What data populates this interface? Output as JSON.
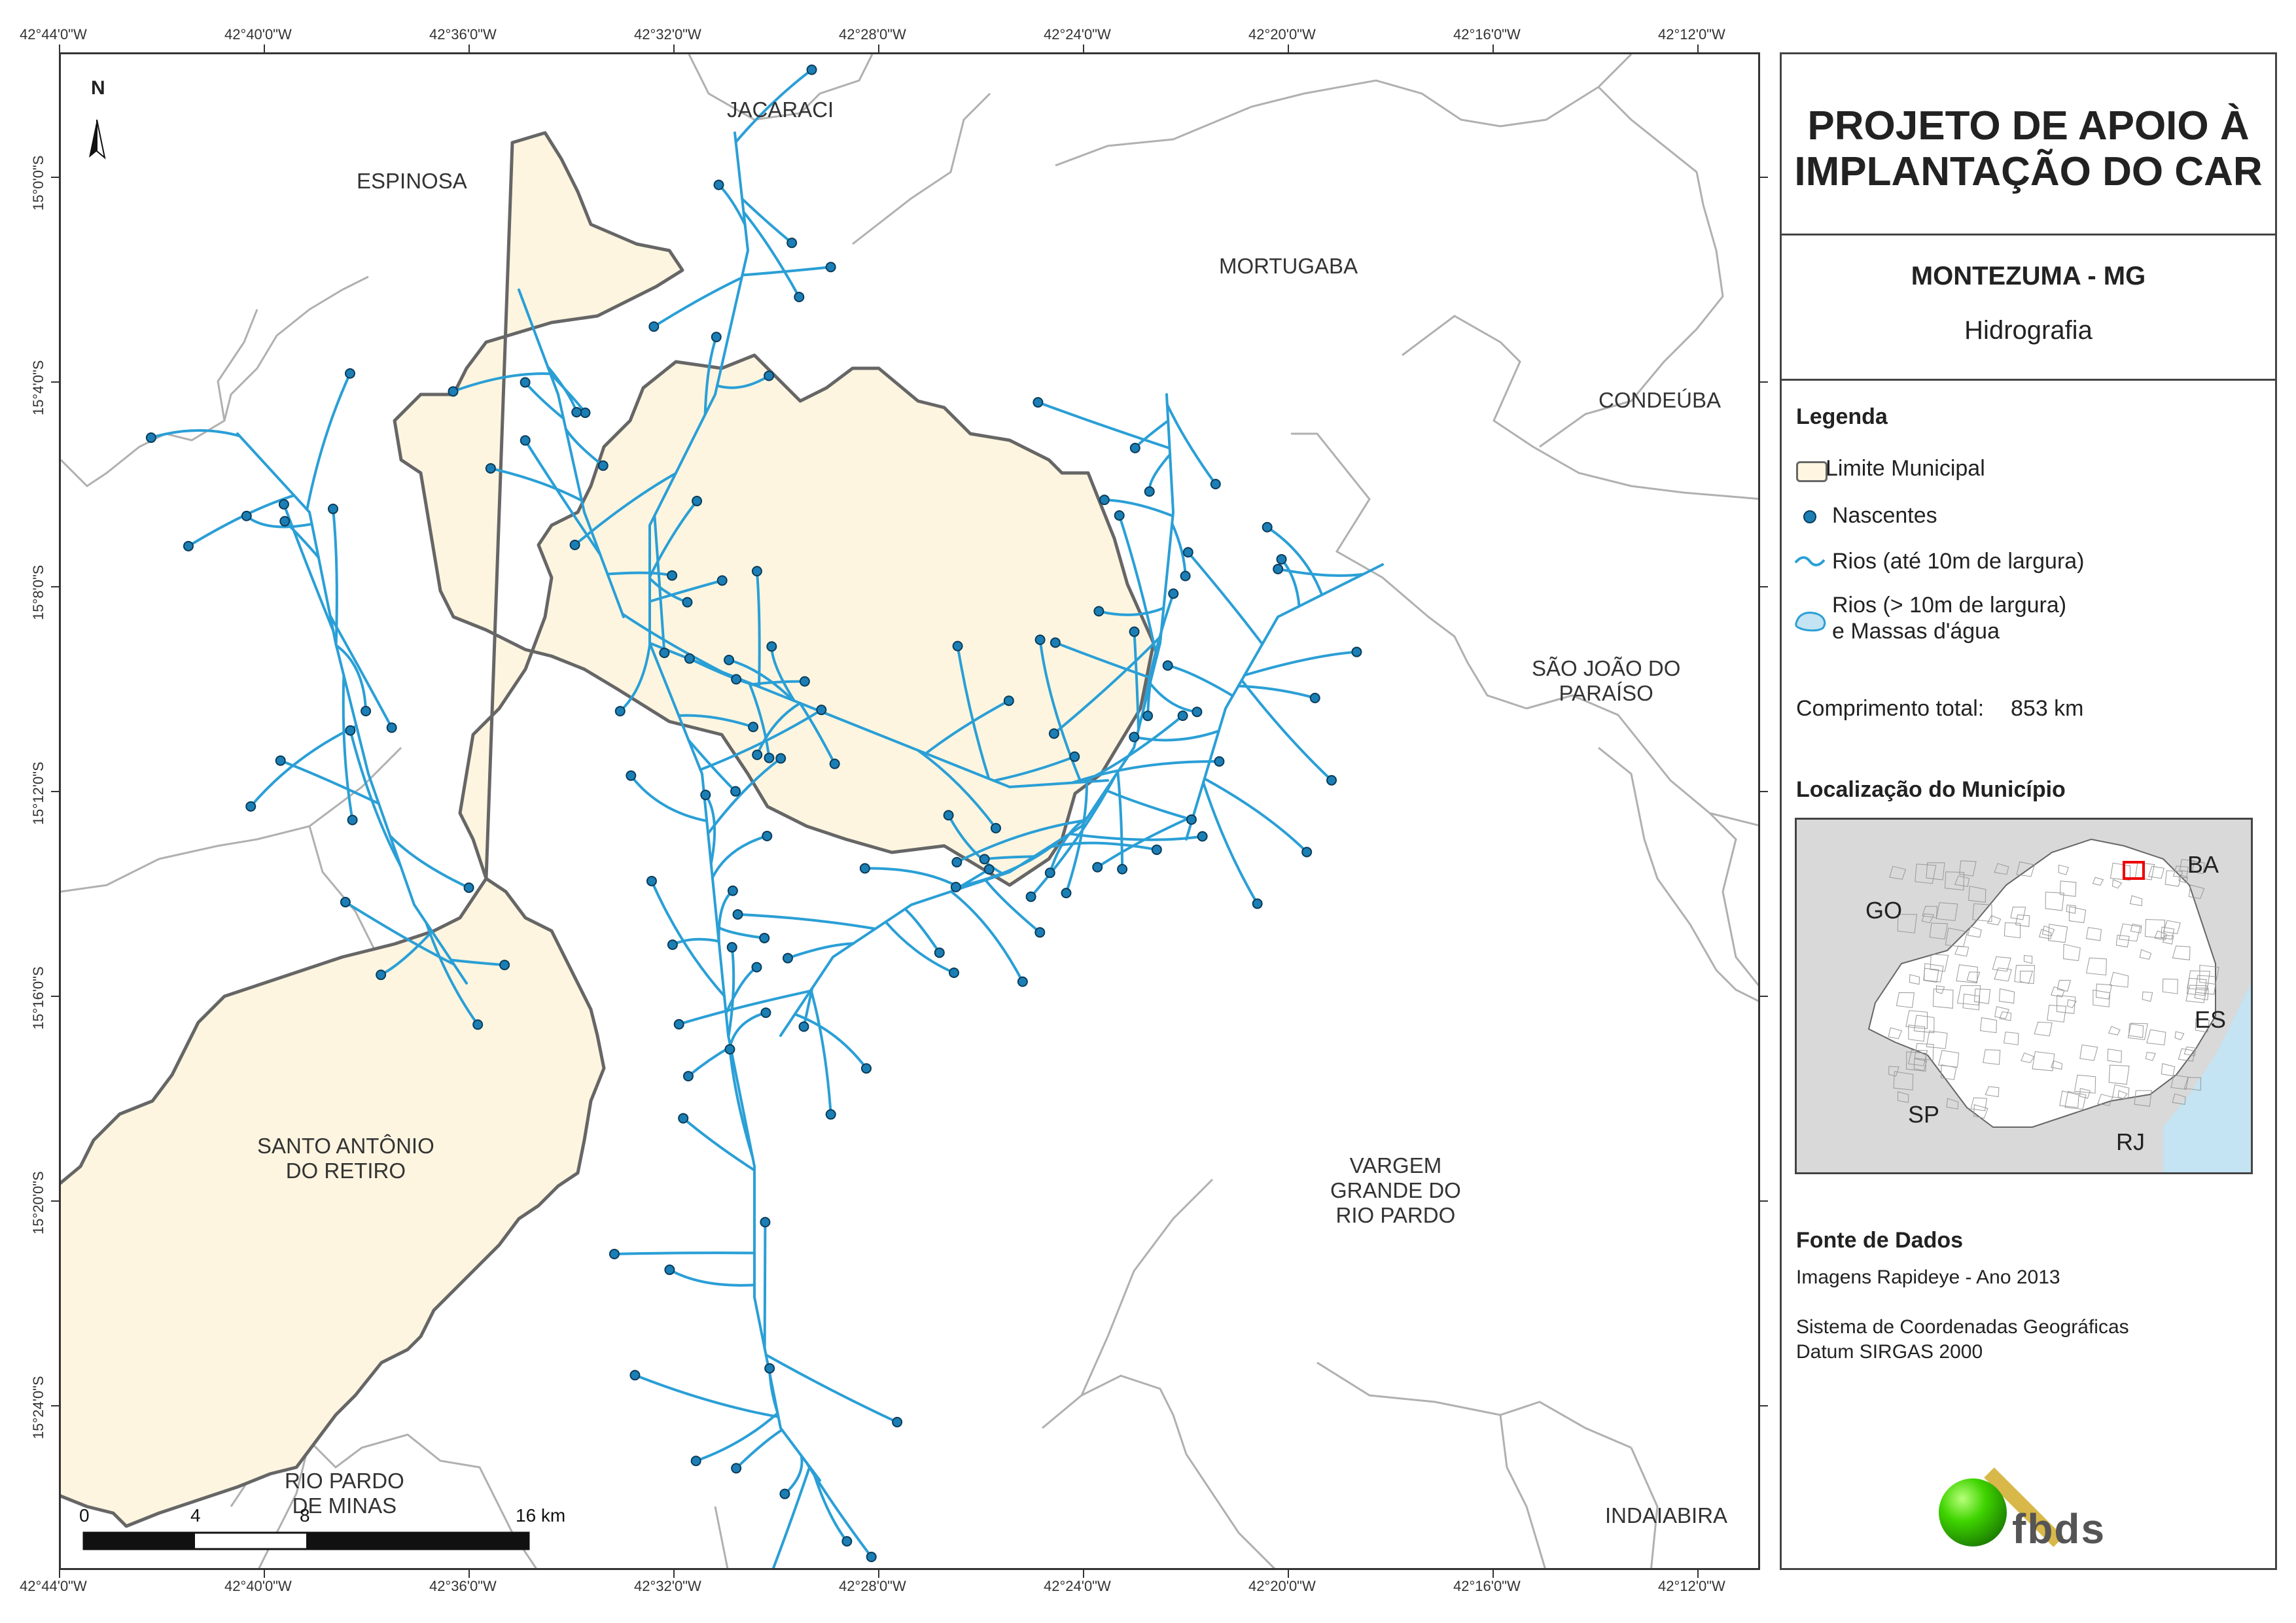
{
  "header": {
    "title_line1": "PROJETO DE APOIO À",
    "title_line2": "IMPLANTAÇÃO DO CAR",
    "municipality": "MONTEZUMA - MG",
    "theme": "Hidrografia"
  },
  "map": {
    "north_arrow_label": "N",
    "top_ticks": [
      "42°44'0\"W",
      "42°40'0\"W",
      "42°36'0\"W",
      "42°32'0\"W",
      "42°28'0\"W",
      "42°24'0\"W",
      "42°20'0\"W",
      "42°16'0\"W",
      "42°12'0\"W"
    ],
    "bottom_ticks": [
      "42°44'0\"W",
      "42°40'0\"W",
      "42°36'0\"W",
      "42°32'0\"W",
      "42°28'0\"W",
      "42°24'0\"W",
      "42°20'0\"W",
      "42°16'0\"W",
      "42°12'0\"W"
    ],
    "left_ticks": [
      "15°0'0\"S",
      "15°4'0\"S",
      "15°8'0\"S",
      "15°12'0\"S",
      "15°16'0\"S",
      "15°20'0\"S",
      "15°24'0\"S"
    ],
    "neighbors": {
      "jacaraci": "JACARACI",
      "espinosa": "ESPINOSA",
      "mortugaba": "MORTUGABA",
      "condeuba": "CONDEÚBA",
      "sao_joao_1": "SÃO JOÃO DO",
      "sao_joao_2": "PARAÍSO",
      "santo_antonio_1": "SANTO ANTÔNIO",
      "santo_antonio_2": "DO RETIRO",
      "vargem_1": "VARGEM",
      "vargem_2": "GRANDE DO",
      "vargem_3": "RIO PARDO",
      "rio_pardo_1": "RIO PARDO",
      "rio_pardo_2": "DE MINAS",
      "indaiabira": "INDAIABIRA"
    },
    "scale_bar": {
      "labels": [
        "0",
        "4",
        "8",
        "16 km"
      ]
    }
  },
  "legend": {
    "title": "Legenda",
    "items": {
      "limit": "Limite Municipal",
      "springs": "Nascentes",
      "rivers_small": "Rios (até 10m de largura)",
      "rivers_large_1": "Rios (> 10m de largura)",
      "rivers_large_2": "e Massas d'água"
    },
    "total_length_label": "Comprimento total:",
    "total_length_value": "853 km"
  },
  "location": {
    "title": "Localização do Município",
    "states": {
      "go": "GO",
      "ba": "BA",
      "es": "ES",
      "sp": "SP",
      "rj": "RJ"
    }
  },
  "sources": {
    "title": "Fonte de Dados",
    "line1": "Imagens Rapideye - Ano 2013",
    "line2": "Sistema de Coordenadas Geográficas",
    "line3": "Datum SIRGAS 2000",
    "logo_text": "fbds"
  },
  "colors": {
    "municipality_fill": "#fdf5e0",
    "river": "#2a9fd6",
    "spring_fill": "#1b7fb5",
    "spring_stroke": "#0a3c5a",
    "boundary": "#666666",
    "neighbor_boundary": "#b0b0b0",
    "ocean": "#c4e3f3",
    "location_bg": "#d9d9d9",
    "logo_green": "#3fd400",
    "logo_gold": "#d9b84a"
  }
}
